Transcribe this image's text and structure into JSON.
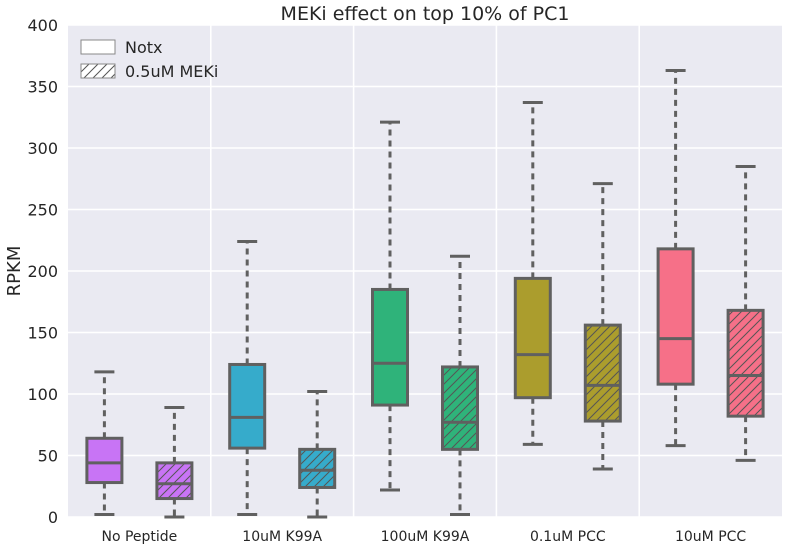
{
  "chart_data": {
    "type": "box",
    "title": "MEKi effect on top 10% of PC1",
    "xlabel": "",
    "ylabel": "RPKM",
    "ylim": [
      0,
      400
    ],
    "yticks": [
      0,
      50,
      100,
      150,
      200,
      250,
      300,
      350,
      400
    ],
    "grid": true,
    "legend_position": "top-left",
    "categories": [
      "No Peptide",
      "10uM K99A",
      "100uM K99A",
      "0.1uM PCC",
      "10uM PCC"
    ],
    "colors": [
      "#c874f5",
      "#36abcb",
      "#2fb37a",
      "#ab9d2d",
      "#f67088"
    ],
    "series": [
      {
        "name": "Notx",
        "pattern": "none",
        "boxes": [
          {
            "whislo": 2,
            "q1": 28,
            "med": 44,
            "q3": 64,
            "whishi": 118
          },
          {
            "whislo": 2,
            "q1": 56,
            "med": 81,
            "q3": 124,
            "whishi": 224
          },
          {
            "whislo": 22,
            "q1": 91,
            "med": 125,
            "q3": 185,
            "whishi": 321
          },
          {
            "whislo": 59,
            "q1": 97,
            "med": 132,
            "q3": 194,
            "whishi": 337
          },
          {
            "whislo": 58,
            "q1": 108,
            "med": 145,
            "q3": 218,
            "whishi": 363
          }
        ]
      },
      {
        "name": "0.5uM MEKi",
        "pattern": "hatch",
        "boxes": [
          {
            "whislo": 0,
            "q1": 15,
            "med": 27,
            "q3": 44,
            "whishi": 89
          },
          {
            "whislo": 0,
            "q1": 24,
            "med": 38,
            "q3": 55,
            "whishi": 102
          },
          {
            "whislo": 2,
            "q1": 55,
            "med": 77,
            "q3": 122,
            "whishi": 212
          },
          {
            "whislo": 39,
            "q1": 78,
            "med": 107,
            "q3": 156,
            "whishi": 271
          },
          {
            "whislo": 46,
            "q1": 82,
            "med": 115,
            "q3": 168,
            "whishi": 285
          }
        ]
      }
    ]
  }
}
